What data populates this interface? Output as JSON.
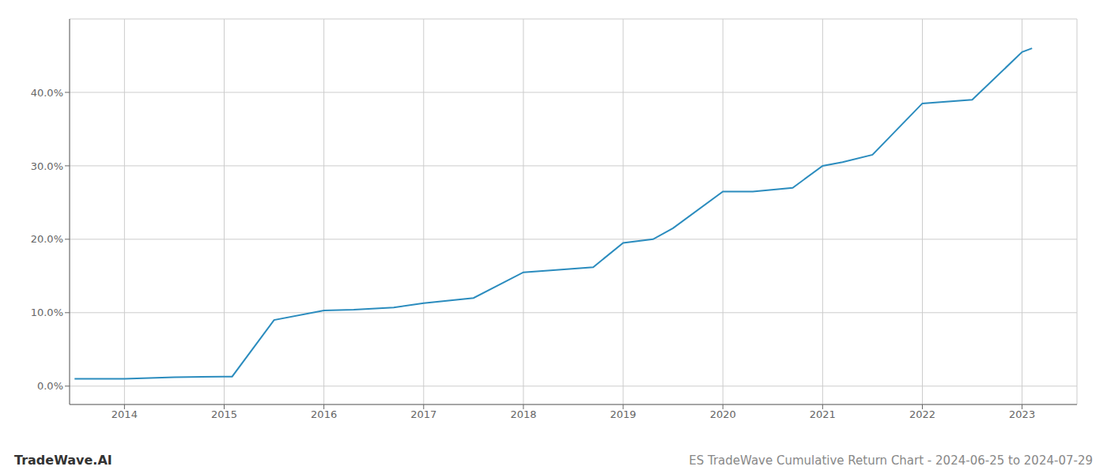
{
  "chart_data": {
    "type": "line",
    "title": "ES TradeWave Cumulative Return Chart - 2024-06-25 to 2024-07-29",
    "annotations": [
      "TradeWave.AI"
    ],
    "x": [
      2013.5,
      2014.0,
      2014.5,
      2015.0,
      2015.08,
      2015.5,
      2016.0,
      2016.3,
      2016.7,
      2017.0,
      2017.5,
      2018.0,
      2018.3,
      2018.7,
      2019.0,
      2019.3,
      2019.5,
      2020.0,
      2020.3,
      2020.7,
      2021.0,
      2021.2,
      2021.5,
      2022.0,
      2022.5,
      2023.0,
      2023.1
    ],
    "values": [
      0.01,
      0.01,
      0.012,
      0.013,
      0.013,
      0.09,
      0.103,
      0.104,
      0.107,
      0.113,
      0.12,
      0.155,
      0.158,
      0.162,
      0.195,
      0.2,
      0.215,
      0.265,
      0.265,
      0.27,
      0.3,
      0.305,
      0.315,
      0.385,
      0.39,
      0.455,
      0.46
    ],
    "color": "#2b8cbe",
    "xlim": [
      2013.45,
      2023.55
    ],
    "ylim": [
      -0.025,
      0.5
    ],
    "xticks": [
      2014,
      2015,
      2016,
      2017,
      2018,
      2019,
      2020,
      2021,
      2022,
      2023
    ],
    "yticks": [
      {
        "value": 0.0,
        "label": "0.0%"
      },
      {
        "value": 0.1,
        "label": "10.0%"
      },
      {
        "value": 0.2,
        "label": "20.0%"
      },
      {
        "value": 0.3,
        "label": "30.0%"
      },
      {
        "value": 0.4,
        "label": "40.0%"
      }
    ],
    "grid": true
  }
}
